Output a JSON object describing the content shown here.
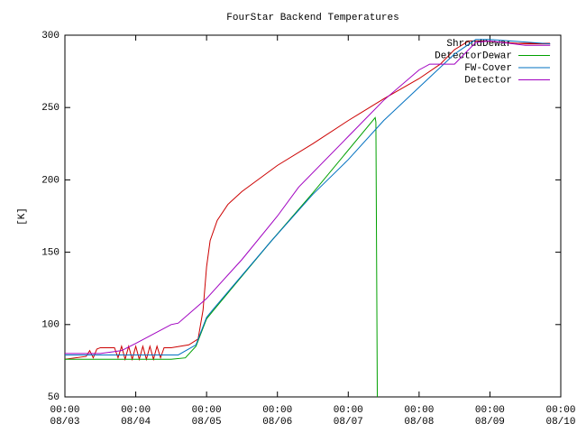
{
  "chart_data": {
    "type": "line",
    "title": "FourStar Backend Temperatures",
    "y_label": "[K]",
    "xlim": [
      0,
      7
    ],
    "ylim": [
      50,
      300
    ],
    "yticks": [
      50,
      100,
      150,
      200,
      250,
      300
    ],
    "xticks": [
      {
        "value": 0,
        "label": "00:00\n08/03"
      },
      {
        "value": 1,
        "label": "00:00\n08/04"
      },
      {
        "value": 2,
        "label": "00:00\n08/05"
      },
      {
        "value": 3,
        "label": "00:00\n08/06"
      },
      {
        "value": 4,
        "label": "00:00\n08/07"
      },
      {
        "value": 5,
        "label": "00:00\n08/08"
      },
      {
        "value": 6,
        "label": "00:00\n08/09"
      },
      {
        "value": 7,
        "label": "00:00\n08/10"
      }
    ],
    "grid": false,
    "legend": "top-right",
    "series": [
      {
        "name": "ShroudDewar",
        "color": "#cc0000",
        "x": [
          0,
          0.3,
          0.35,
          0.4,
          0.45,
          0.5,
          0.6,
          0.7,
          0.75,
          0.8,
          0.85,
          0.9,
          0.95,
          1.0,
          1.05,
          1.1,
          1.15,
          1.2,
          1.25,
          1.3,
          1.35,
          1.4,
          1.5,
          1.75,
          1.88,
          1.95,
          2.0,
          2.05,
          2.15,
          2.3,
          2.5,
          3.0,
          3.5,
          4.0,
          4.5,
          5.0,
          5.3,
          5.5,
          5.7,
          5.9,
          6.5,
          6.85
        ],
        "values": [
          76,
          78,
          82,
          77,
          83,
          84,
          84,
          84,
          77,
          85,
          76,
          85,
          76,
          85,
          76,
          85,
          76,
          85,
          76,
          85,
          77,
          84,
          84,
          86,
          90,
          110,
          140,
          158,
          172,
          183,
          192,
          210,
          225,
          241,
          256,
          270,
          280,
          290,
          296,
          296,
          294,
          294
        ]
      },
      {
        "name": "DetectorDewar",
        "color": "#00a000",
        "x": [
          0,
          1.5,
          1.7,
          1.85,
          2.0,
          2.1,
          2.9,
          3.5,
          4.38,
          4.39,
          4.4,
          4.41
        ],
        "values": [
          76,
          76,
          77,
          85,
          104,
          110,
          157,
          191,
          243,
          240,
          147,
          50
        ]
      },
      {
        "name": "FW-Cover",
        "color": "#0070c0",
        "x": [
          0,
          1.6,
          1.85,
          2.0,
          2.1,
          2.9,
          3.5,
          4.0,
          4.5,
          5.0,
          5.5,
          5.8,
          6.0,
          6.85
        ],
        "values": [
          79,
          79,
          86,
          105,
          111,
          157,
          190,
          214,
          241,
          264,
          287,
          297,
          297,
          294
        ]
      },
      {
        "name": "Detector",
        "color": "#a000c0",
        "x": [
          0,
          0.5,
          0.8,
          1.0,
          1.5,
          1.6,
          2.0,
          2.5,
          3.0,
          3.3,
          4.0,
          4.5,
          5.0,
          5.15,
          5.5,
          5.8,
          6.0,
          6.5,
          6.85
        ],
        "values": [
          80,
          80,
          82,
          87,
          100,
          101,
          118,
          145,
          175,
          195,
          230,
          255,
          276,
          280,
          280,
          295,
          296,
          293,
          293
        ]
      }
    ]
  }
}
